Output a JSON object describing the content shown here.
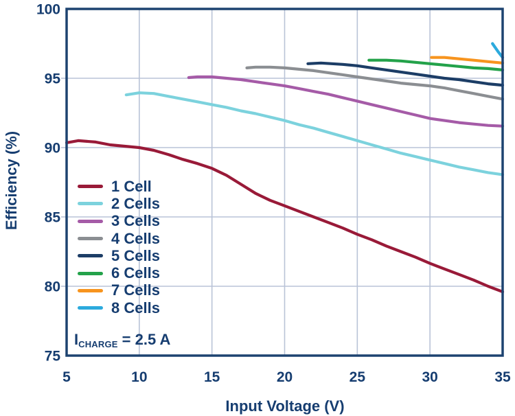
{
  "chart_data": {
    "type": "line",
    "title": "",
    "xlabel": "Input Voltage (V)",
    "ylabel": "Efficiency (%)",
    "xlim": [
      5,
      35
    ],
    "ylim": [
      75,
      100
    ],
    "xticks": [
      5,
      10,
      15,
      20,
      25,
      30,
      35
    ],
    "yticks": [
      75,
      80,
      85,
      90,
      95,
      100
    ],
    "grid": true,
    "legend_position": "inside-lower-left",
    "series": [
      {
        "name": "1 Cell",
        "color": "#991a38",
        "points": [
          [
            5,
            90.35
          ],
          [
            5.8,
            90.5
          ],
          [
            7,
            90.4
          ],
          [
            8,
            90.2
          ],
          [
            9,
            90.1
          ],
          [
            10,
            90.0
          ],
          [
            11,
            89.8
          ],
          [
            12,
            89.5
          ],
          [
            13,
            89.15
          ],
          [
            14,
            88.85
          ],
          [
            15,
            88.5
          ],
          [
            16,
            88.0
          ],
          [
            17,
            87.35
          ],
          [
            18,
            86.7
          ],
          [
            19,
            86.2
          ],
          [
            20,
            85.8
          ],
          [
            21,
            85.4
          ],
          [
            22,
            85.0
          ],
          [
            23,
            84.6
          ],
          [
            24,
            84.2
          ],
          [
            25,
            83.75
          ],
          [
            26,
            83.35
          ],
          [
            27,
            82.9
          ],
          [
            28,
            82.5
          ],
          [
            29,
            82.1
          ],
          [
            30,
            81.65
          ],
          [
            31,
            81.25
          ],
          [
            32,
            80.85
          ],
          [
            33,
            80.45
          ],
          [
            34,
            80.0
          ],
          [
            35,
            79.6
          ]
        ]
      },
      {
        "name": "2 Cells",
        "color": "#7cd2dd",
        "points": [
          [
            9.1,
            93.8
          ],
          [
            10,
            93.95
          ],
          [
            11,
            93.9
          ],
          [
            12,
            93.7
          ],
          [
            13,
            93.5
          ],
          [
            14,
            93.3
          ],
          [
            15,
            93.1
          ],
          [
            16,
            92.9
          ],
          [
            17,
            92.65
          ],
          [
            18,
            92.45
          ],
          [
            19,
            92.2
          ],
          [
            20,
            91.95
          ],
          [
            21,
            91.65
          ],
          [
            22,
            91.4
          ],
          [
            23,
            91.1
          ],
          [
            24,
            90.8
          ],
          [
            25,
            90.5
          ],
          [
            26,
            90.2
          ],
          [
            27,
            89.9
          ],
          [
            28,
            89.6
          ],
          [
            29,
            89.35
          ],
          [
            30,
            89.1
          ],
          [
            31,
            88.85
          ],
          [
            32,
            88.6
          ],
          [
            33,
            88.4
          ],
          [
            34,
            88.2
          ],
          [
            35,
            88.05
          ]
        ]
      },
      {
        "name": "3 Cells",
        "color": "#a55ba7",
        "points": [
          [
            13.4,
            95.05
          ],
          [
            14,
            95.1
          ],
          [
            15,
            95.1
          ],
          [
            16,
            95.0
          ],
          [
            17,
            94.9
          ],
          [
            18,
            94.75
          ],
          [
            19,
            94.6
          ],
          [
            20,
            94.45
          ],
          [
            21,
            94.25
          ],
          [
            22,
            94.05
          ],
          [
            23,
            93.85
          ],
          [
            24,
            93.6
          ],
          [
            25,
            93.35
          ],
          [
            26,
            93.1
          ],
          [
            27,
            92.85
          ],
          [
            28,
            92.6
          ],
          [
            29,
            92.35
          ],
          [
            30,
            92.1
          ],
          [
            31,
            91.95
          ],
          [
            32,
            91.8
          ],
          [
            33,
            91.7
          ],
          [
            34,
            91.6
          ],
          [
            35,
            91.55
          ]
        ]
      },
      {
        "name": "4 Cells",
        "color": "#8b8e92",
        "points": [
          [
            17.4,
            95.75
          ],
          [
            18,
            95.8
          ],
          [
            19,
            95.8
          ],
          [
            20,
            95.75
          ],
          [
            21,
            95.65
          ],
          [
            22,
            95.55
          ],
          [
            23,
            95.4
          ],
          [
            24,
            95.25
          ],
          [
            25,
            95.1
          ],
          [
            26,
            94.95
          ],
          [
            27,
            94.8
          ],
          [
            28,
            94.65
          ],
          [
            29,
            94.55
          ],
          [
            30,
            94.45
          ],
          [
            31,
            94.3
          ],
          [
            32,
            94.1
          ],
          [
            33,
            93.9
          ],
          [
            34,
            93.7
          ],
          [
            35,
            93.5
          ]
        ]
      },
      {
        "name": "5 Cells",
        "color": "#1c3d66",
        "points": [
          [
            21.6,
            96.05
          ],
          [
            22.5,
            96.1
          ],
          [
            24,
            96.0
          ],
          [
            25,
            95.9
          ],
          [
            26,
            95.75
          ],
          [
            27,
            95.6
          ],
          [
            28,
            95.45
          ],
          [
            29,
            95.3
          ],
          [
            30,
            95.15
          ],
          [
            31,
            95.0
          ],
          [
            32,
            94.9
          ],
          [
            33,
            94.75
          ],
          [
            34,
            94.6
          ],
          [
            35,
            94.5
          ]
        ]
      },
      {
        "name": "6 Cells",
        "color": "#23a24a",
        "points": [
          [
            25.8,
            96.3
          ],
          [
            27,
            96.3
          ],
          [
            28,
            96.25
          ],
          [
            29,
            96.15
          ],
          [
            30,
            96.05
          ],
          [
            31,
            95.95
          ],
          [
            32,
            95.85
          ],
          [
            33,
            95.75
          ],
          [
            34,
            95.7
          ],
          [
            35,
            95.6
          ]
        ]
      },
      {
        "name": "7 Cells",
        "color": "#f7941e",
        "points": [
          [
            30.1,
            96.5
          ],
          [
            31,
            96.5
          ],
          [
            32,
            96.4
          ],
          [
            33,
            96.3
          ],
          [
            34,
            96.2
          ],
          [
            35,
            96.1
          ]
        ]
      },
      {
        "name": "8 Cells",
        "color": "#2caadd",
        "points": [
          [
            34.3,
            97.5
          ],
          [
            34.7,
            96.9
          ],
          [
            35,
            96.5
          ]
        ]
      }
    ]
  },
  "annotation": {
    "symbol": "I",
    "subscript": "CHARGE",
    "value": "= 2.5 A"
  },
  "colors": {
    "text": "#163d70",
    "axis": "#1d4370",
    "grid": "#b9c3d7",
    "background": "#ffffff"
  }
}
